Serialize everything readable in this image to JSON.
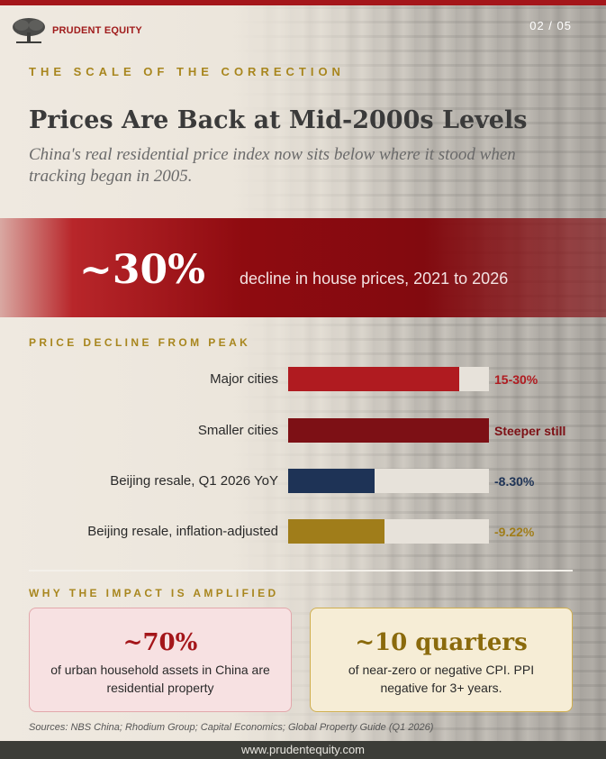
{
  "brand": {
    "name": "PRUDENT EQUITY"
  },
  "page_number": "02 / 05",
  "kicker": "THE SCALE OF THE CORRECTION",
  "title": "Prices Are Back at Mid-2000s Levels",
  "subtitle": "China's real residential price index now sits below where it stood when tracking began in 2005.",
  "banner": {
    "value": "~30%",
    "text": "decline in house prices, 2021 to 2026"
  },
  "decline_section": {
    "heading": "PRICE DECLINE FROM PEAK",
    "rows": [
      {
        "label": "Major cities",
        "value": "15-30%",
        "fill": 0.85,
        "color": "#b01b20"
      },
      {
        "label": "Smaller cities",
        "value": "Steeper still",
        "fill": 1.0,
        "color": "#7d1015"
      },
      {
        "label": "Beijing resale, Q1 2026 YoY",
        "value": "-8.30%",
        "fill": 0.43,
        "color": "#1e3356"
      },
      {
        "label": "Beijing resale, inflation-adjusted",
        "value": "-9.22%",
        "fill": 0.48,
        "color": "#a07d1a"
      }
    ]
  },
  "impact_section": {
    "heading": "WHY THE IMPACT IS AMPLIFIED",
    "cards": [
      {
        "big": "~70%",
        "text": "of urban household assets in China are residential property"
      },
      {
        "big": "~10 quarters",
        "text": "of near-zero or negative CPI. PPI negative for 3+ years."
      }
    ]
  },
  "sources": "Sources: NBS China; Rhodium Group; Capital Economics; Global Property Guide (Q1 2026)",
  "footer": "www.prudentequity.com",
  "colors": {
    "accent_red": "#a4161a",
    "gold": "#a8861e",
    "navy": "#1e3356"
  }
}
